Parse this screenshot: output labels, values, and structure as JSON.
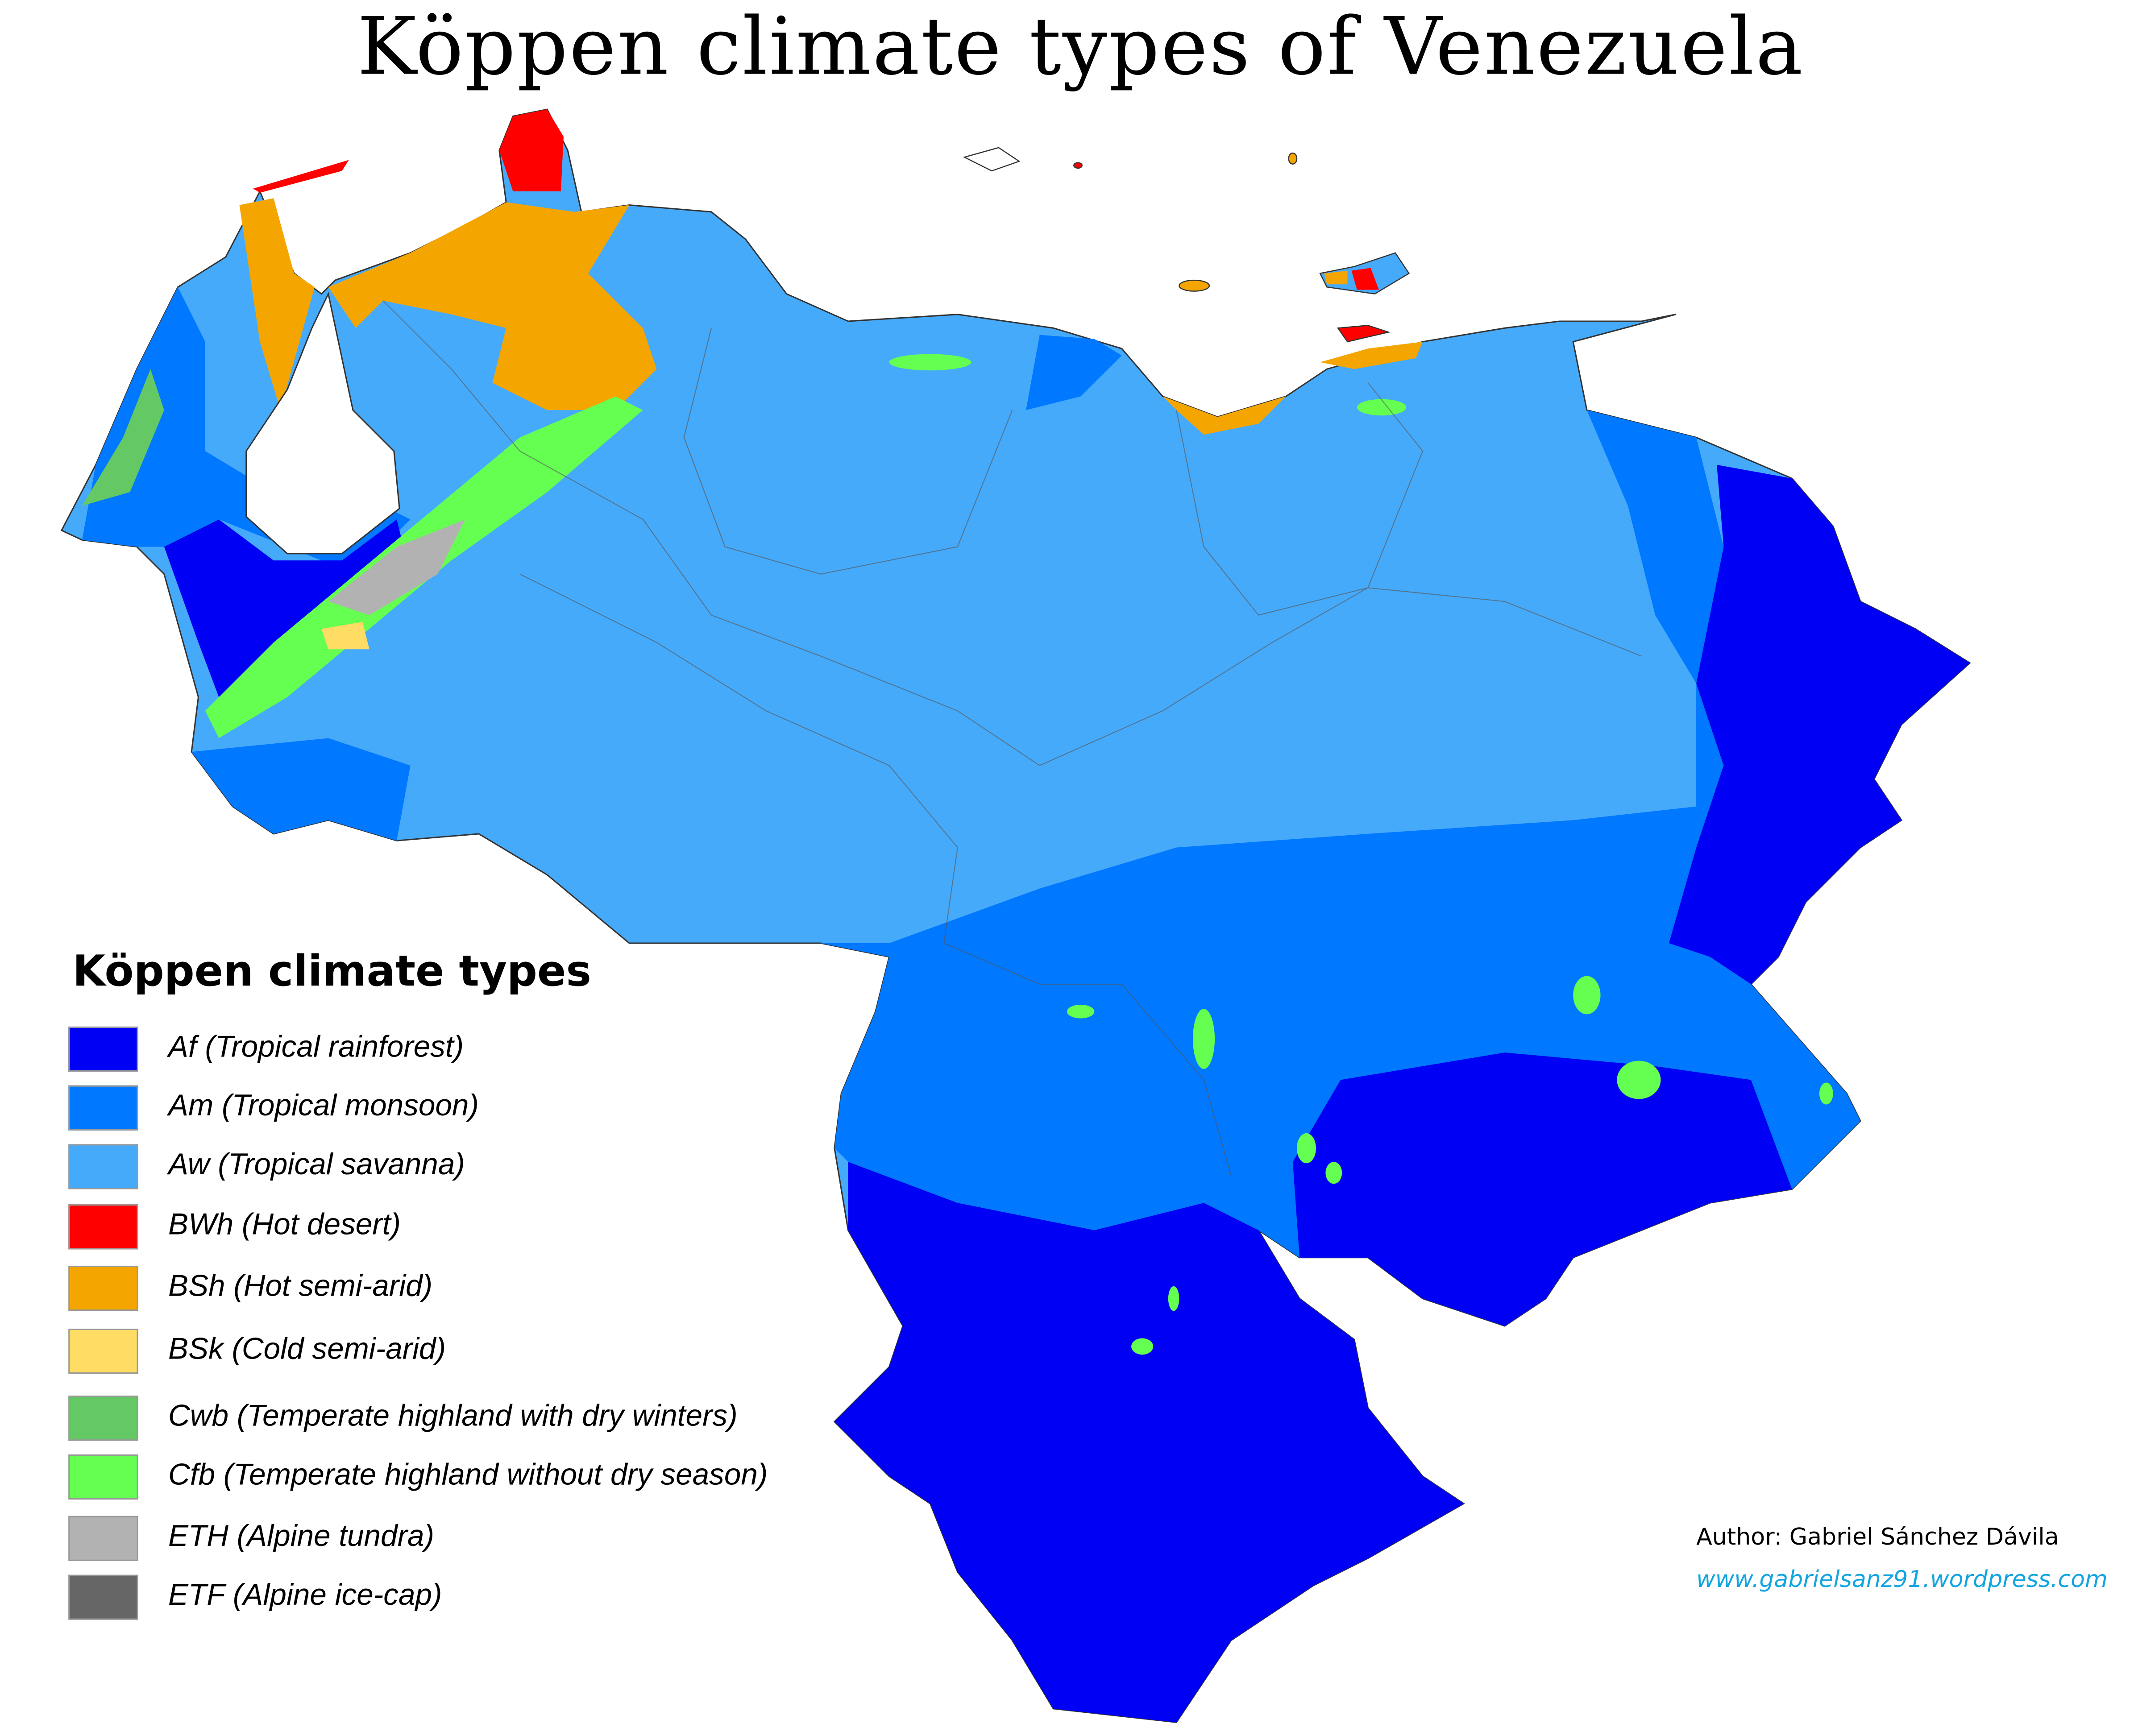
{
  "title": "Köppen climate types of Venezuela",
  "legend": {
    "title": "Köppen climate types",
    "items": [
      {
        "code": "Af",
        "label": "Af (Tropical rainforest)",
        "color": "#0000f5"
      },
      {
        "code": "Am",
        "label": "Am (Tropical monsoon)",
        "color": "#0078ff"
      },
      {
        "code": "Aw",
        "label": "Aw (Tropical savanna)",
        "color": "#46aafa"
      },
      {
        "code": "BWh",
        "label": "BWh (Hot desert)",
        "color": "#ff0000"
      },
      {
        "code": "BSh",
        "label": "BSh (Hot semi-arid)",
        "color": "#f5a500"
      },
      {
        "code": "BSk",
        "label": "BSk (Cold semi-arid)",
        "color": "#ffdc64"
      },
      {
        "code": "Cwb",
        "label": "Cwb (Temperate highland with dry winters)",
        "color": "#64c864"
      },
      {
        "code": "Cfb",
        "label": "Cfb (Temperate highland without dry season)",
        "color": "#64ff50"
      },
      {
        "code": "ETH",
        "label": "ETH (Alpine tundra)",
        "color": "#b2b2b2"
      },
      {
        "code": "ETF",
        "label": "ETF (Alpine ice-cap)",
        "color": "#666666"
      }
    ]
  },
  "credits": {
    "author": "Author: Gabriel Sánchez Dávila",
    "url": "www.gabrielsanz91.wordpress.com"
  }
}
